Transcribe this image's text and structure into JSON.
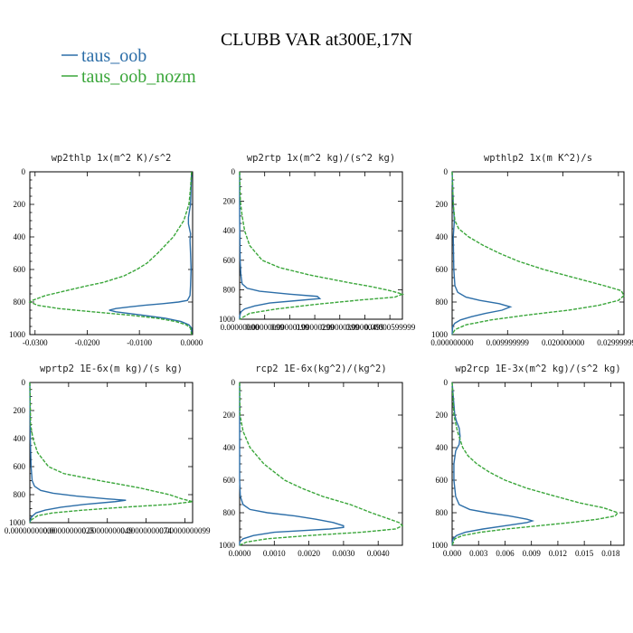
{
  "figure": {
    "title": "CLUBB VAR at300E,17N",
    "legend": [
      {
        "name": "taus_oob",
        "color": "#2c6ea8"
      },
      {
        "name": "taus_oob_nozm",
        "color": "#3aa63a",
        "dashed": true
      }
    ]
  },
  "chart_data": [
    {
      "type": "line",
      "title": "wp2thlp   1x(m^2 K)/s^2",
      "xlim": [
        -0.031,
        0.0002
      ],
      "ylim": [
        1000,
        0
      ],
      "xticks": [
        -0.03,
        -0.02,
        -0.01,
        0.0
      ],
      "xticklabels": [
        "-0.0300",
        "-0.0200",
        "-0.0100",
        "0.0000"
      ],
      "yticks": [
        0,
        200,
        400,
        600,
        800,
        1000
      ],
      "series": [
        {
          "name": "taus_oob",
          "p": [
            0,
            100,
            200,
            280,
            320,
            380,
            420,
            500,
            600,
            700,
            760,
            790,
            800,
            810,
            820,
            830,
            840,
            850,
            860,
            880,
            900,
            920,
            940,
            960,
            1000
          ],
          "values": [
            0,
            -0.0001,
            -0.0002,
            -0.0006,
            -0.0006,
            -0.0002,
            -0.0003,
            -0.0002,
            -0.0001,
            -0.0002,
            -0.0003,
            -0.0008,
            -0.0025,
            -0.0055,
            -0.009,
            -0.012,
            -0.0145,
            -0.0158,
            -0.0145,
            -0.0095,
            -0.005,
            -0.002,
            -0.0005,
            0,
            0
          ]
        },
        {
          "name": "taus_oob_nozm",
          "p": [
            0,
            100,
            200,
            300,
            400,
            500,
            560,
            600,
            640,
            680,
            700,
            730,
            760,
            790,
            800,
            820,
            840,
            860,
            880,
            900,
            920,
            940,
            960,
            1000
          ],
          "values": [
            0,
            -0.0002,
            -0.0005,
            -0.0015,
            -0.0035,
            -0.0065,
            -0.0085,
            -0.0105,
            -0.013,
            -0.017,
            -0.02,
            -0.024,
            -0.028,
            -0.0305,
            -0.031,
            -0.0295,
            -0.0255,
            -0.019,
            -0.012,
            -0.0065,
            -0.003,
            -0.001,
            -0.0002,
            0
          ]
        }
      ]
    },
    {
      "type": "line",
      "title": "wp2rtp   1x(m^2 kg)/(s^2 kg)",
      "xlim": [
        0.0,
        6.5e-06
      ],
      "ylim": [
        1000,
        0
      ],
      "xticks": [
        0.0,
        1e-06,
        2e-06,
        3e-06,
        4e-06,
        5e-06,
        6e-06
      ],
      "xticklabels": [
        "0.00000000",
        "0.00000099",
        "0.00000199",
        "0.00000299",
        "0.00000399",
        "0.00000499",
        "0.00000599999"
      ],
      "yticks": [
        0,
        200,
        400,
        600,
        800,
        1000
      ],
      "series": [
        {
          "name": "taus_oob",
          "p": [
            0,
            300,
            600,
            700,
            760,
            790,
            810,
            830,
            845,
            860,
            875,
            890,
            910,
            930,
            950,
            980,
            1000
          ],
          "values": [
            0,
            0,
            2e-08,
            5e-08,
            1e-07,
            3e-07,
            8e-07,
            2e-06,
            3.1e-06,
            3.2e-06,
            2.2e-06,
            1.2e-06,
            6e-07,
            2e-07,
            5e-08,
            0,
            0
          ]
        },
        {
          "name": "taus_oob_nozm",
          "p": [
            0,
            200,
            300,
            400,
            500,
            600,
            650,
            700,
            750,
            780,
            810,
            830,
            850,
            870,
            900,
            930,
            960,
            1000
          ],
          "values": [
            0,
            3e-08,
            1e-07,
            2e-07,
            4e-07,
            9e-07,
            1.6e-06,
            2.8e-06,
            4.3e-06,
            5.3e-06,
            6.1e-06,
            6.5e-06,
            6.2e-06,
            4.8e-06,
            3e-06,
            1.5e-06,
            4e-07,
            0
          ]
        }
      ]
    },
    {
      "type": "line",
      "title": "wpthlp2   1x(m K^2)/s",
      "xlim": [
        0.0,
        0.031
      ],
      "ylim": [
        1000,
        0
      ],
      "xticks": [
        0.0,
        0.01,
        0.02,
        0.03
      ],
      "xticklabels": [
        "0.000000000",
        "0.009999999",
        "0.020000000",
        "0.029999999"
      ],
      "yticks": [
        0,
        200,
        400,
        600,
        800,
        1000
      ],
      "series": [
        {
          "name": "taus_oob",
          "p": [
            0,
            200,
            300,
            400,
            600,
            700,
            740,
            770,
            790,
            810,
            830,
            850,
            870,
            890,
            910,
            930,
            950,
            1000
          ],
          "values": [
            0,
            0.0002,
            0.0004,
            0.0002,
            0.0003,
            0.0005,
            0.001,
            0.0025,
            0.005,
            0.0085,
            0.0105,
            0.009,
            0.006,
            0.0035,
            0.0015,
            0.0005,
            0.0001,
            0
          ]
        },
        {
          "name": "taus_oob_nozm",
          "p": [
            0,
            200,
            300,
            350,
            400,
            450,
            500,
            550,
            600,
            650,
            700,
            730,
            760,
            790,
            820,
            850,
            880,
            910,
            940,
            970,
            1000
          ],
          "values": [
            0,
            0.0002,
            0.0005,
            0.0012,
            0.003,
            0.0055,
            0.0085,
            0.012,
            0.0165,
            0.022,
            0.0275,
            0.0305,
            0.031,
            0.03,
            0.0265,
            0.021,
            0.0135,
            0.007,
            0.0025,
            0.0005,
            0
          ]
        }
      ]
    },
    {
      "type": "line",
      "title": "wprtp2   1E-6x(m kg)/(s kg)",
      "xlim": [
        0.0,
        1.05e-09
      ],
      "ylim": [
        1000,
        0
      ],
      "xticks": [
        0.0,
        2.5e-10,
        5e-10,
        7.5e-10,
        1e-09
      ],
      "xticklabels": [
        "0.00000000000",
        "0.00000000025",
        "0.00000000049",
        "0.00000000074",
        "0.00000000099"
      ],
      "yticks": [
        0,
        200,
        400,
        600,
        800,
        1000
      ],
      "series": [
        {
          "name": "taus_oob",
          "p": [
            0,
            400,
            600,
            700,
            740,
            770,
            790,
            810,
            830,
            840,
            850,
            870,
            890,
            910,
            930,
            960,
            1000
          ],
          "values": [
            0,
            3e-12,
            8e-12,
            1.5e-11,
            3e-11,
            7e-11,
            1.5e-10,
            3e-10,
            5e-10,
            6.2e-10,
            5.5e-10,
            3.5e-10,
            2e-10,
            1e-10,
            4e-11,
            1e-11,
            0
          ]
        },
        {
          "name": "taus_oob_nozm",
          "p": [
            0,
            300,
            400,
            500,
            600,
            650,
            700,
            750,
            800,
            830,
            850,
            870,
            890,
            910,
            930,
            950,
            980,
            1000
          ],
          "values": [
            0,
            5e-12,
            2e-11,
            5e-11,
            1.2e-10,
            2.2e-10,
            4.5e-10,
            7e-10,
            9e-10,
            9.8e-10,
            1.05e-09,
            9e-10,
            6e-10,
            3.5e-10,
            1.5e-10,
            5e-11,
            1e-11,
            0
          ]
        }
      ]
    },
    {
      "type": "line",
      "title": "rcp2   1E-6x(kg^2)/(kg^2)",
      "xlim": [
        0.0,
        0.0047
      ],
      "ylim": [
        1000,
        0
      ],
      "xticks": [
        0.0,
        0.001,
        0.002,
        0.003,
        0.004
      ],
      "xticklabels": [
        "0.0000",
        "0.0010",
        "0.0020",
        "0.0030",
        "0.0040"
      ],
      "yticks": [
        0,
        200,
        400,
        600,
        800,
        1000
      ],
      "series": [
        {
          "name": "taus_oob",
          "p": [
            0,
            600,
            700,
            750,
            780,
            800,
            820,
            840,
            860,
            880,
            890,
            900,
            910,
            920,
            940,
            960,
            980,
            1000
          ],
          "values": [
            0,
            0,
            2e-05,
            0.0001,
            0.0003,
            0.0008,
            0.0016,
            0.0022,
            0.0027,
            0.003,
            0.003,
            0.0026,
            0.0018,
            0.001,
            0.0004,
            0.0001,
            0,
            0
          ]
        },
        {
          "name": "taus_oob_nozm",
          "p": [
            0,
            200,
            300,
            400,
            500,
            600,
            650,
            700,
            750,
            800,
            830,
            860,
            880,
            900,
            920,
            940,
            960,
            980,
            1000
          ],
          "values": [
            0,
            1e-05,
            0.0001,
            0.0003,
            0.0007,
            0.0013,
            0.0018,
            0.0024,
            0.0032,
            0.0038,
            0.0042,
            0.0046,
            0.0047,
            0.0045,
            0.0035,
            0.002,
            0.0008,
            0.0002,
            0
          ]
        }
      ]
    },
    {
      "type": "line",
      "title": "wp2rcp   1E-3x(m^2 kg)/(s^2 kg)",
      "xlim": [
        0.0,
        0.0195
      ],
      "ylim": [
        1000,
        0
      ],
      "xticks": [
        0.0,
        0.003,
        0.006,
        0.009,
        0.012,
        0.015,
        0.018
      ],
      "xticklabels": [
        "0.000",
        "0.003",
        "0.006",
        "0.009",
        "0.012",
        "0.015",
        "0.018"
      ],
      "yticks": [
        0,
        200,
        400,
        600,
        800,
        1000
      ],
      "series": [
        {
          "name": "taus_oob",
          "p": [
            0,
            200,
            240,
            280,
            330,
            380,
            420,
            500,
            600,
            700,
            750,
            780,
            800,
            820,
            840,
            850,
            860,
            880,
            900,
            920,
            940,
            960,
            1000
          ],
          "values": [
            0,
            0.0003,
            0.0005,
            0.0008,
            0.0009,
            0.0008,
            0.0004,
            0.0002,
            0.0002,
            0.0004,
            0.0008,
            0.002,
            0.004,
            0.0065,
            0.0085,
            0.0091,
            0.0085,
            0.006,
            0.0035,
            0.0015,
            0.0005,
            0.0001,
            0
          ]
        },
        {
          "name": "taus_oob_nozm",
          "p": [
            0,
            200,
            300,
            400,
            450,
            500,
            550,
            600,
            650,
            700,
            740,
            770,
            800,
            820,
            840,
            860,
            880,
            900,
            920,
            940,
            960,
            1000
          ],
          "values": [
            0,
            0.0002,
            0.0006,
            0.0012,
            0.0018,
            0.0028,
            0.0042,
            0.006,
            0.0085,
            0.0118,
            0.0145,
            0.0172,
            0.0188,
            0.0185,
            0.0165,
            0.0135,
            0.0098,
            0.0062,
            0.0032,
            0.0012,
            0.0003,
            0
          ]
        }
      ]
    }
  ]
}
